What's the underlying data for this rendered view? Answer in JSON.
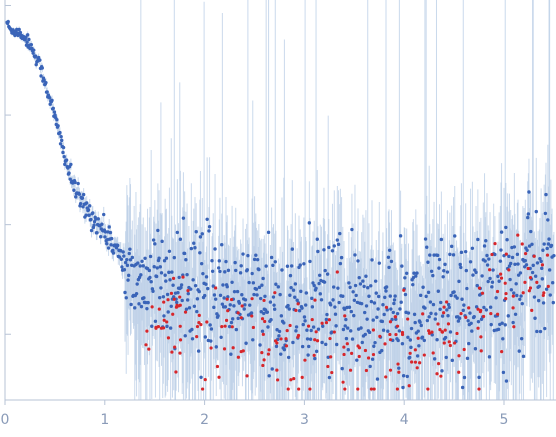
{
  "chart_data": {
    "type": "scatter",
    "title": "",
    "xlabel": "",
    "ylabel": "",
    "xlim": [
      0,
      5.5
    ],
    "ylim": [
      -3.6,
      0.05
    ],
    "y_scale": "log",
    "grid": false,
    "x_ticks": [
      {
        "value": 0,
        "label": "0"
      },
      {
        "value": 1,
        "label": "1"
      },
      {
        "value": 2,
        "label": "2"
      },
      {
        "value": 3,
        "label": "3"
      },
      {
        "value": 4,
        "label": "4"
      },
      {
        "value": 5,
        "label": "5"
      }
    ],
    "y_ticks": [
      0,
      -1,
      -2,
      -3
    ],
    "series": [
      {
        "color": "#3a64b8",
        "style": "points with vertical error bars",
        "curve_anchors": [
          {
            "q": 0.0,
            "log_i": -0.1
          },
          {
            "q": 0.05,
            "log_i": -0.22
          },
          {
            "q": 0.15,
            "log_i": -0.25
          },
          {
            "q": 0.25,
            "log_i": -0.35
          },
          {
            "q": 0.35,
            "log_i": -0.55
          },
          {
            "q": 0.45,
            "log_i": -0.85
          },
          {
            "q": 0.55,
            "log_i": -1.2
          },
          {
            "q": 0.65,
            "log_i": -1.55
          },
          {
            "q": 0.75,
            "log_i": -1.78
          },
          {
            "q": 0.85,
            "log_i": -1.9
          },
          {
            "q": 0.95,
            "log_i": -2.02
          },
          {
            "q": 1.05,
            "log_i": -2.12
          },
          {
            "q": 1.15,
            "log_i": -2.3
          },
          {
            "q": 1.25,
            "log_i": -2.45
          },
          {
            "q": 1.4,
            "log_i": -2.48
          },
          {
            "q": 1.7,
            "log_i": -2.45
          },
          {
            "q": 2.0,
            "log_i": -2.6
          },
          {
            "q": 2.5,
            "log_i": -2.7
          },
          {
            "q": 3.0,
            "log_i": -2.75
          },
          {
            "q": 3.5,
            "log_i": -2.78
          },
          {
            "q": 4.0,
            "log_i": -2.8
          },
          {
            "q": 4.5,
            "log_i": -2.72
          },
          {
            "q": 5.0,
            "log_i": -2.6
          },
          {
            "q": 5.5,
            "log_i": -2.3
          }
        ]
      },
      {
        "color": "#d7262b",
        "style": "points (negative / outlier intensities)",
        "q_range": [
          1.4,
          5.5
        ],
        "log_i_range": [
          -3.5,
          -1.8
        ]
      }
    ]
  }
}
